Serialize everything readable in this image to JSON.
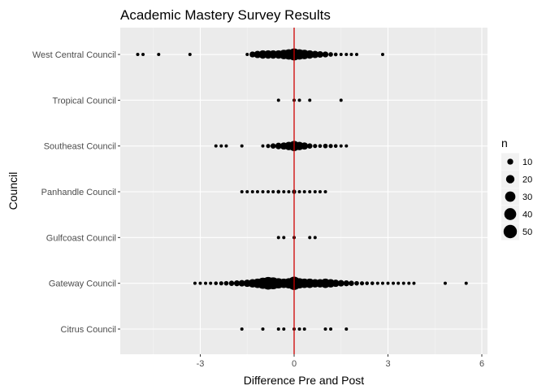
{
  "chart_data": {
    "type": "scatter",
    "title": "Academic Mastery Survey Results",
    "xlabel": "Difference Pre and Post",
    "ylabel": "Council",
    "xlim": [
      -5.2,
      6.0
    ],
    "x_ticks": [
      -3,
      0,
      3,
      6
    ],
    "x_tick_labels": [
      "-3",
      "0",
      "3",
      "6"
    ],
    "grid": true,
    "reference_line": {
      "x": 0,
      "color": "#cc0000"
    },
    "categories": [
      "Citrus Council",
      "Gateway Council",
      "Gulfcoast Council",
      "Panhandle Council",
      "Southeast Council",
      "Tropical Council",
      "West Central Council"
    ],
    "size_legend": {
      "title": "n",
      "placement": "right",
      "values": [
        10,
        20,
        30,
        40,
        50
      ],
      "labels": [
        "10",
        "20",
        "30",
        "40",
        "50"
      ]
    },
    "series": [
      {
        "category": "Citrus Council",
        "points": [
          [
            -1.67,
            1
          ],
          [
            -1.0,
            1
          ],
          [
            -0.5,
            2
          ],
          [
            -0.33,
            2
          ],
          [
            0.0,
            3
          ],
          [
            0.17,
            2
          ],
          [
            0.33,
            1
          ],
          [
            1.0,
            2
          ],
          [
            1.17,
            1
          ],
          [
            1.67,
            1
          ]
        ]
      },
      {
        "category": "Gateway Council",
        "points": [
          [
            -3.17,
            2
          ],
          [
            -3.0,
            1
          ],
          [
            -2.83,
            2
          ],
          [
            -2.67,
            3
          ],
          [
            -2.5,
            4
          ],
          [
            -2.33,
            5
          ],
          [
            -2.17,
            6
          ],
          [
            -2.0,
            8
          ],
          [
            -1.83,
            10
          ],
          [
            -1.67,
            12
          ],
          [
            -1.5,
            15
          ],
          [
            -1.33,
            20
          ],
          [
            -1.17,
            25
          ],
          [
            -1.0,
            35
          ],
          [
            -0.83,
            45
          ],
          [
            -0.67,
            40
          ],
          [
            -0.5,
            30
          ],
          [
            -0.33,
            25
          ],
          [
            -0.17,
            30
          ],
          [
            0.0,
            50
          ],
          [
            0.17,
            30
          ],
          [
            0.33,
            25
          ],
          [
            0.5,
            25
          ],
          [
            0.67,
            20
          ],
          [
            0.83,
            20
          ],
          [
            1.0,
            25
          ],
          [
            1.17,
            20
          ],
          [
            1.33,
            15
          ],
          [
            1.5,
            12
          ],
          [
            1.67,
            10
          ],
          [
            1.83,
            8
          ],
          [
            2.0,
            6
          ],
          [
            2.17,
            5
          ],
          [
            2.33,
            4
          ],
          [
            2.5,
            4
          ],
          [
            2.67,
            3
          ],
          [
            2.83,
            2
          ],
          [
            3.0,
            2
          ],
          [
            3.17,
            1
          ],
          [
            3.33,
            1
          ],
          [
            3.5,
            2
          ],
          [
            3.67,
            2
          ],
          [
            3.83,
            1
          ],
          [
            4.83,
            1
          ],
          [
            5.5,
            2
          ]
        ]
      },
      {
        "category": "Gulfcoast Council",
        "points": [
          [
            -0.5,
            1
          ],
          [
            -0.33,
            2
          ],
          [
            0.0,
            3
          ],
          [
            0.5,
            2
          ],
          [
            0.67,
            1
          ]
        ]
      },
      {
        "category": "Panhandle Council",
        "points": [
          [
            -1.67,
            1
          ],
          [
            -1.5,
            1
          ],
          [
            -1.33,
            1
          ],
          [
            -1.17,
            1
          ],
          [
            -1.0,
            2
          ],
          [
            -0.83,
            2
          ],
          [
            -0.67,
            3
          ],
          [
            -0.5,
            4
          ],
          [
            -0.33,
            3
          ],
          [
            -0.17,
            2
          ],
          [
            0.0,
            5
          ],
          [
            0.17,
            2
          ],
          [
            0.33,
            2
          ],
          [
            0.5,
            3
          ],
          [
            0.67,
            3
          ],
          [
            0.83,
            2
          ],
          [
            1.0,
            1
          ]
        ]
      },
      {
        "category": "Southeast Council",
        "points": [
          [
            -2.5,
            1
          ],
          [
            -2.33,
            1
          ],
          [
            -2.17,
            1
          ],
          [
            -1.67,
            1
          ],
          [
            -1.0,
            2
          ],
          [
            -0.83,
            5
          ],
          [
            -0.67,
            8
          ],
          [
            -0.5,
            12
          ],
          [
            -0.33,
            15
          ],
          [
            -0.17,
            20
          ],
          [
            0.0,
            30
          ],
          [
            0.17,
            20
          ],
          [
            0.33,
            15
          ],
          [
            0.5,
            8
          ],
          [
            0.67,
            5
          ],
          [
            0.83,
            4
          ],
          [
            1.0,
            6
          ],
          [
            1.17,
            5
          ],
          [
            1.33,
            4
          ],
          [
            1.5,
            3
          ],
          [
            1.67,
            2
          ]
        ]
      },
      {
        "category": "Tropical Council",
        "points": [
          [
            -0.5,
            1
          ],
          [
            0.0,
            2
          ],
          [
            0.17,
            1
          ],
          [
            0.5,
            1
          ],
          [
            1.5,
            1
          ]
        ]
      },
      {
        "category": "West Central Council",
        "points": [
          [
            -5.0,
            1
          ],
          [
            -4.83,
            1
          ],
          [
            -4.33,
            1
          ],
          [
            -3.33,
            1
          ],
          [
            -1.5,
            3
          ],
          [
            -1.33,
            10
          ],
          [
            -1.17,
            15
          ],
          [
            -1.0,
            20
          ],
          [
            -0.83,
            20
          ],
          [
            -0.67,
            20
          ],
          [
            -0.5,
            20
          ],
          [
            -0.33,
            25
          ],
          [
            -0.17,
            30
          ],
          [
            0.0,
            40
          ],
          [
            0.17,
            30
          ],
          [
            0.33,
            25
          ],
          [
            0.5,
            20
          ],
          [
            0.67,
            15
          ],
          [
            0.83,
            12
          ],
          [
            1.0,
            10
          ],
          [
            1.17,
            6
          ],
          [
            1.33,
            4
          ],
          [
            1.5,
            3
          ],
          [
            1.67,
            3
          ],
          [
            1.83,
            2
          ],
          [
            2.0,
            2
          ],
          [
            2.83,
            1
          ]
        ]
      }
    ]
  }
}
